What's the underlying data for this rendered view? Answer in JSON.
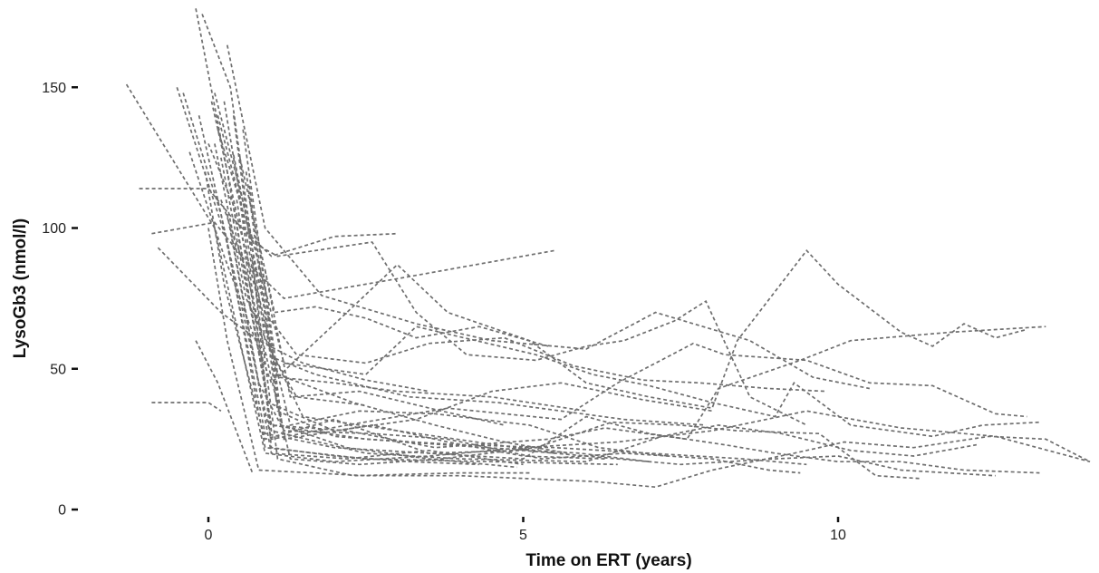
{
  "chart_data": {
    "type": "line",
    "title": "",
    "xlabel": "Time on ERT (years)",
    "ylabel": "LysoGb3 (nmol/l)",
    "xlim": [
      -1.3,
      14.1
    ],
    "ylim": [
      0,
      178
    ],
    "xticks": [
      0,
      5,
      10
    ],
    "yticks": [
      0,
      50,
      100,
      150
    ],
    "xtick_labels": [
      "0",
      "5",
      "10"
    ],
    "ytick_labels": [
      "0",
      "50",
      "100",
      "150"
    ],
    "grid": false,
    "legend": "none",
    "line_color": "#6e6e6e",
    "line_style": "dashed",
    "series": [
      {
        "x": [
          -1.3,
          0.1,
          0.9,
          2,
          3.5,
          5,
          6.5,
          8,
          9.5,
          11,
          12.5,
          14
        ],
        "values": [
          151,
          100,
          20,
          17,
          19,
          22,
          24,
          28,
          35,
          29,
          26,
          17
        ]
      },
      {
        "x": [
          -1.1,
          0.0,
          0.4,
          1.0,
          2.0,
          3.0
        ],
        "values": [
          114,
          114,
          103,
          90,
          97,
          98
        ]
      },
      {
        "x": [
          -0.9,
          0.1,
          0.6,
          1.2,
          3,
          5.5
        ],
        "values": [
          98,
          102,
          88,
          75,
          82,
          92
        ]
      },
      {
        "x": [
          -0.9,
          0.0,
          0.2
        ],
        "values": [
          38,
          38,
          35
        ]
      },
      {
        "x": [
          -0.8,
          0.2,
          0.8,
          1.5,
          2.5,
          3.5
        ],
        "values": [
          93,
          70,
          60,
          52,
          46,
          42
        ]
      },
      {
        "x": [
          -0.5,
          0.3,
          0.9,
          2.5,
          4.5,
          6.5
        ],
        "values": [
          150,
          95,
          22,
          18,
          17,
          16
        ]
      },
      {
        "x": [
          -0.4,
          0.2,
          0.9,
          2,
          3.5,
          5,
          6.5,
          7.5,
          9,
          10,
          11,
          12.5
        ],
        "values": [
          148,
          105,
          27,
          22,
          20,
          21,
          18,
          16,
          18,
          19,
          14,
          12
        ]
      },
      {
        "x": [
          -0.3,
          0.25,
          1,
          2.2,
          3,
          3.8,
          5.1,
          6,
          7,
          8,
          8.4,
          9.5,
          10,
          11,
          11.5,
          12,
          12.5,
          13
        ],
        "values": [
          127,
          90,
          45,
          70,
          87,
          70,
          60,
          45,
          40,
          36,
          60,
          92,
          80,
          63,
          58,
          66,
          61,
          64
        ]
      },
      {
        "x": [
          -0.2,
          0.15,
          0.7
        ],
        "values": [
          60,
          45,
          13
        ]
      },
      {
        "x": [
          -0.2,
          0.3,
          1.0,
          2.5,
          4,
          5.5,
          7,
          8.5,
          9.5
        ],
        "values": [
          178,
          120,
          30,
          25,
          23,
          22,
          20,
          18,
          16
        ]
      },
      {
        "x": [
          -0.15,
          0.4,
          1.0,
          2.2,
          3.8,
          5.6,
          6.5,
          7.7,
          8.2,
          9.5,
          10.5,
          11.5,
          12.5,
          13
        ],
        "values": [
          140,
          85,
          25,
          30,
          36,
          32,
          45,
          59,
          55,
          53,
          45,
          44,
          34,
          33
        ]
      },
      {
        "x": [
          -0.1,
          0.35,
          0.9,
          1.4,
          2.5
        ],
        "values": [
          176,
          150,
          60,
          40,
          37
        ]
      },
      {
        "x": [
          -0.05,
          0.25,
          0.9,
          2,
          3.5,
          5,
          6,
          7,
          8.2,
          9.0,
          10,
          11,
          12,
          13.2
        ],
        "values": [
          120,
          80,
          25,
          32,
          20,
          18,
          33,
          27,
          23,
          20,
          17,
          17,
          14,
          13
        ]
      },
      {
        "x": [
          0,
          0.4,
          1.0,
          2.2,
          3.6,
          5.4,
          6.3,
          7.6,
          8.1,
          9.4,
          10.2,
          11.8,
          13.3
        ],
        "values": [
          130,
          108,
          30,
          28,
          22,
          25,
          29,
          25,
          43,
          53,
          60,
          63,
          65
        ]
      },
      {
        "x": [
          0,
          0.3,
          0.8,
          2.5,
          4.0,
          6.1,
          7.1,
          8.0,
          9.3,
          10.1,
          11.2,
          12.4,
          13.3,
          14
        ],
        "values": [
          100,
          60,
          14,
          12,
          12,
          10,
          8,
          14,
          20,
          24,
          22,
          26,
          25,
          17
        ]
      },
      {
        "x": [
          0.05,
          0.5,
          1.1,
          2,
          3,
          4.5,
          6
        ],
        "values": [
          145,
          100,
          47,
          45,
          42,
          40,
          35
        ]
      },
      {
        "x": [
          0.1,
          0.45,
          1.2,
          2.5,
          3.3,
          5.2,
          6.1,
          7,
          8,
          9,
          9.3,
          10.2,
          11.5,
          12.3,
          13.2
        ],
        "values": [
          148,
          118,
          52,
          48,
          65,
          55,
          48,
          44,
          38,
          33,
          45,
          30,
          26,
          30,
          31
        ]
      },
      {
        "x": [
          0.1,
          0.6,
          1.5,
          3.0,
          5.5
        ],
        "values": [
          130,
          75,
          33,
          28,
          20
        ]
      },
      {
        "x": [
          0.15,
          0.5,
          1.0,
          2.5,
          4.0,
          6.0,
          7.2,
          8.1,
          9.1,
          10.2,
          11.2,
          12.2
        ],
        "values": [
          140,
          110,
          28,
          20,
          18,
          17,
          26,
          30,
          27,
          21,
          19,
          23
        ]
      },
      {
        "x": [
          0.15,
          0.7,
          1.1,
          2.6,
          3.3,
          4.1,
          5.2,
          6.0,
          6.6,
          7.4,
          7.9,
          8.6,
          9.5
        ],
        "values": [
          135,
          95,
          90,
          95,
          70,
          55,
          53,
          58,
          60,
          67,
          74,
          40,
          30
        ]
      },
      {
        "x": [
          0.2,
          0.6,
          1.3,
          2.4,
          3.7,
          5.2,
          6.4,
          7.5,
          8.4,
          9.7,
          10.6,
          11.3
        ],
        "values": [
          110,
          85,
          18,
          16,
          18,
          22,
          31,
          30,
          28,
          27,
          12,
          11
        ]
      },
      {
        "x": [
          0.2,
          0.8,
          1.7,
          3.2,
          4.6,
          6.6,
          7.9
        ],
        "values": [
          125,
          56,
          48,
          40,
          38,
          32,
          30
        ]
      },
      {
        "x": [
          0.25,
          0.7,
          1.3,
          2.4,
          3.6,
          5.1,
          6.2,
          7.3
        ],
        "values": [
          145,
          85,
          30,
          35,
          34,
          30,
          22,
          19
        ]
      },
      {
        "x": [
          0.3,
          0.9,
          1.8,
          3.3,
          4.5,
          6.0,
          7.1,
          8.6,
          9.6,
          10.5
        ],
        "values": [
          165,
          100,
          76,
          66,
          60,
          57,
          70,
          60,
          47,
          43
        ]
      },
      {
        "x": [
          0.3,
          1.0,
          2.2,
          3.5,
          5.0
        ],
        "values": [
          105,
          20,
          18,
          21,
          16
        ]
      },
      {
        "x": [
          0.35,
          0.8,
          1.2,
          2.6,
          3.8,
          5.3,
          6.6,
          8.0,
          8.9,
          9.4
        ],
        "values": [
          100,
          45,
          28,
          27,
          25,
          18,
          20,
          18,
          14,
          13
        ]
      },
      {
        "x": [
          0.4,
          1.1,
          2.3,
          4.0,
          5.1
        ],
        "values": [
          140,
          18,
          12,
          13,
          13
        ]
      },
      {
        "x": [
          0.4,
          0.9,
          1.4,
          2.5,
          3.5,
          4.7,
          5.8,
          6.9,
          7.8,
          8.9,
          9.8
        ],
        "values": [
          126,
          70,
          55,
          52,
          59,
          61,
          51,
          46,
          45,
          43,
          42
        ]
      },
      {
        "x": [
          0.45,
          0.95,
          2.0,
          3.3,
          4.5,
          5.6,
          6.9,
          8.0
        ],
        "values": [
          110,
          38,
          28,
          32,
          42,
          45,
          39,
          35
        ]
      },
      {
        "x": [
          0.5,
          1.05,
          1.7,
          2.5,
          3.3,
          4.3,
          5.4
        ],
        "values": [
          125,
          70,
          72,
          68,
          61,
          65,
          58
        ]
      },
      {
        "x": [
          0.55,
          1.1,
          2.3,
          3.6,
          4.7,
          5.7
        ],
        "values": [
          135,
          48,
          38,
          30,
          24,
          20
        ]
      },
      {
        "x": [
          0.6,
          1.1,
          2.0,
          3.1,
          4.4,
          5.9,
          7.0
        ],
        "values": [
          120,
          35,
          26,
          24,
          22,
          20,
          17
        ]
      },
      {
        "x": [
          0.65,
          1.15,
          2.2,
          3.5,
          4.9
        ],
        "values": [
          115,
          30,
          22,
          18,
          15
        ]
      },
      {
        "x": [
          0.7,
          1.0,
          2.0,
          3.2,
          4.3
        ],
        "values": [
          90,
          22,
          19,
          17,
          16
        ]
      },
      {
        "x": [
          0.8,
          1.2,
          2.6,
          3.8,
          5.0,
          6.3
        ],
        "values": [
          95,
          25,
          30,
          24,
          19,
          18
        ]
      },
      {
        "x": [
          0.9,
          1.3,
          2.4,
          3.7,
          4.7
        ],
        "values": [
          85,
          40,
          42,
          35,
          30
        ]
      }
    ]
  }
}
